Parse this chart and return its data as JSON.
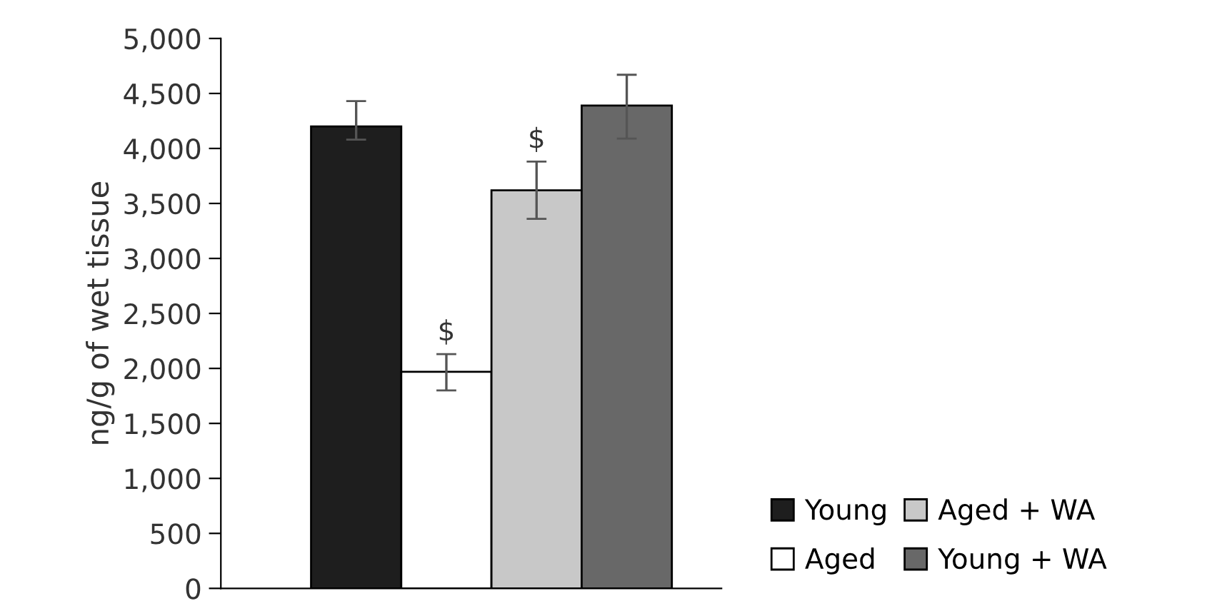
{
  "chart_data": {
    "type": "bar",
    "ylabel": "ng/g of wet tissue",
    "stacked": true,
    "categories": [
      null,
      null,
      null,
      null
    ],
    "series": [
      {
        "name": "Young",
        "color": "#1e1e1e",
        "values": [
          4200,
          null,
          null,
          null
        ],
        "errors": [
          [
            4080,
            4430
          ],
          null,
          null,
          null
        ]
      },
      {
        "name": "Aged",
        "color": "#ffffff",
        "values": [
          null,
          1970,
          null,
          null
        ],
        "errors": [
          null,
          [
            1800,
            2130
          ],
          null,
          null
        ],
        "value_labels": [
          null,
          "$",
          null,
          null
        ]
      },
      {
        "name": "Aged + WA",
        "color": "#c8c8c8",
        "values": [
          null,
          null,
          3620,
          null
        ],
        "errors": [
          null,
          null,
          [
            3360,
            3880
          ],
          null
        ],
        "value_labels": [
          null,
          null,
          "$",
          null
        ]
      },
      {
        "name": "Young + WA",
        "color": "#686868",
        "values": [
          null,
          null,
          null,
          4390
        ],
        "errors": [
          null,
          null,
          null,
          [
            4090,
            4670
          ]
        ]
      }
    ],
    "ylim": [
      0,
      5000
    ],
    "yticks": [
      0,
      500,
      {
        "value": 1000,
        "label": "1,000"
      },
      {
        "value": 1500,
        "label": "1,500"
      },
      {
        "value": 2000,
        "label": "2,000"
      },
      {
        "value": 2500,
        "label": "2,500"
      },
      {
        "value": 3000,
        "label": "3,000"
      },
      {
        "value": 3500,
        "label": "3,500"
      },
      {
        "value": 4000,
        "label": "4,000"
      },
      {
        "value": 4500,
        "label": "4,500"
      },
      {
        "value": 5000,
        "label": "5,000"
      }
    ],
    "grid": false,
    "legend": "bottom right",
    "tick_labels": "y"
  }
}
